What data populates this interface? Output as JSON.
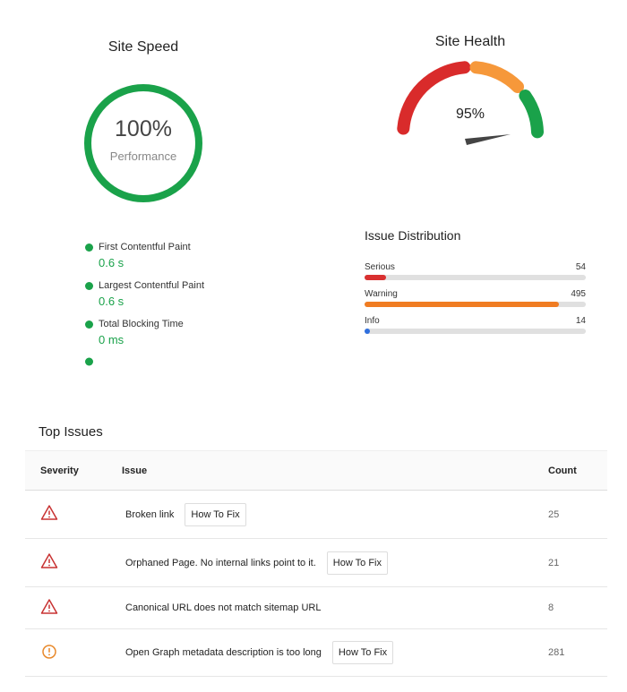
{
  "site_speed": {
    "title": "Site Speed",
    "score": "100%",
    "score_label": "Performance",
    "metrics": [
      {
        "label": "First Contentful Paint",
        "value": "0.6 s"
      },
      {
        "label": "Largest Contentful Paint",
        "value": "0.6 s"
      },
      {
        "label": "Total Blocking Time",
        "value": "0 ms"
      }
    ]
  },
  "site_health": {
    "title": "Site Health",
    "score": "95%"
  },
  "issue_distribution": {
    "title": "Issue Distribution",
    "items": [
      {
        "label": "Serious",
        "count": 54,
        "color": "#d93030"
      },
      {
        "label": "Warning",
        "count": 495,
        "color": "#f07c22"
      },
      {
        "label": "Info",
        "count": 14,
        "color": "#2f6fde"
      }
    ]
  },
  "top_issues": {
    "title": "Top Issues",
    "columns": [
      "Severity",
      "Issue",
      "Count"
    ],
    "rows": [
      {
        "severity": "error",
        "issue": "Broken link",
        "fix": "How To Fix",
        "count": 25
      },
      {
        "severity": "error",
        "issue": "Orphaned Page. No internal links point to it.",
        "fix": "How To Fix",
        "count": 21
      },
      {
        "severity": "error",
        "issue": "Canonical URL does not match sitemap URL",
        "count": 8
      },
      {
        "severity": "warning",
        "issue": "Open Graph metadata description is too long",
        "fix": "How To Fix",
        "count": 281
      }
    ]
  }
}
